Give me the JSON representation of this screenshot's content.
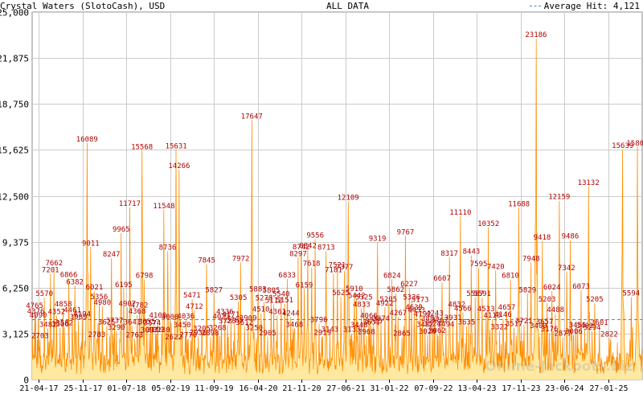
{
  "header": {
    "title": "Crystal Waters (SlotoCash), USD",
    "range": "ALL DATA",
    "average_label": "Average Hit: 4,121"
  },
  "watermark": "Online-Jackpots.biz",
  "colors": {
    "fill": "#ffe8a0",
    "line": "#ff8c00",
    "peak_label": "#b00000",
    "average_line": "#3a8fd8",
    "grid": "#cccccc"
  },
  "chart_data": {
    "type": "area",
    "title": "Crystal Waters (SlotoCash), USD",
    "xlabel": "",
    "ylabel": "",
    "ylim": [
      0,
      25000
    ],
    "yticks": [
      0,
      3125,
      6250,
      9375,
      12500,
      15625,
      18750,
      21875,
      25000
    ],
    "ytick_labels": [
      "0",
      "3,125",
      "6,250",
      "9,375",
      "12,500",
      "15,625",
      "18,750",
      "21,875",
      "25,000"
    ],
    "x_tick_labels": [
      "21-04-17",
      "25-11-17",
      "01-07-18",
      "05-02-19",
      "11-09-19",
      "16-04-20",
      "21-11-20",
      "27-06-21",
      "31-01-22",
      "07-09-22",
      "13-04-23",
      "17-11-23",
      "23-06-24",
      "27-01-25"
    ],
    "average": 4121,
    "grid": true,
    "legend": "top-right",
    "peaks": [
      {
        "x": 0.004,
        "v": 4765
      },
      {
        "x": 0.006,
        "v": 4376
      },
      {
        "x": 0.01,
        "v": 4090
      },
      {
        "x": 0.013,
        "v": 2703
      },
      {
        "x": 0.02,
        "v": 5570
      },
      {
        "x": 0.026,
        "v": 3482
      },
      {
        "x": 0.03,
        "v": 7201
      },
      {
        "x": 0.036,
        "v": 7662
      },
      {
        "x": 0.04,
        "v": 4352
      },
      {
        "x": 0.046,
        "v": 3506
      },
      {
        "x": 0.051,
        "v": 4858
      },
      {
        "x": 0.053,
        "v": 3582
      },
      {
        "x": 0.06,
        "v": 6866
      },
      {
        "x": 0.066,
        "v": 4461
      },
      {
        "x": 0.07,
        "v": 6382
      },
      {
        "x": 0.076,
        "v": 3989
      },
      {
        "x": 0.082,
        "v": 4194
      },
      {
        "x": 0.09,
        "v": 16089
      },
      {
        "x": 0.096,
        "v": 9011
      },
      {
        "x": 0.102,
        "v": 6021
      },
      {
        "x": 0.106,
        "v": 2783
      },
      {
        "x": 0.11,
        "v": 5356
      },
      {
        "x": 0.115,
        "v": 4980
      },
      {
        "x": 0.122,
        "v": 3625
      },
      {
        "x": 0.13,
        "v": 8247
      },
      {
        "x": 0.135,
        "v": 3737
      },
      {
        "x": 0.138,
        "v": 3290
      },
      {
        "x": 0.146,
        "v": 9965
      },
      {
        "x": 0.15,
        "v": 6195
      },
      {
        "x": 0.156,
        "v": 4907
      },
      {
        "x": 0.16,
        "v": 11717
      },
      {
        "x": 0.164,
        "v": 3641
      },
      {
        "x": 0.168,
        "v": 2763
      },
      {
        "x": 0.172,
        "v": 4368
      },
      {
        "x": 0.176,
        "v": 4782
      },
      {
        "x": 0.18,
        "v": 15568
      },
      {
        "x": 0.184,
        "v": 6798
      },
      {
        "x": 0.188,
        "v": 3655
      },
      {
        "x": 0.192,
        "v": 3097
      },
      {
        "x": 0.197,
        "v": 3574
      },
      {
        "x": 0.202,
        "v": 3119
      },
      {
        "x": 0.206,
        "v": 4100
      },
      {
        "x": 0.212,
        "v": 3130
      },
      {
        "x": 0.216,
        "v": 11548
      },
      {
        "x": 0.222,
        "v": 8736
      },
      {
        "x": 0.226,
        "v": 4000
      },
      {
        "x": 0.232,
        "v": 2622
      },
      {
        "x": 0.236,
        "v": 15631
      },
      {
        "x": 0.241,
        "v": 14266
      },
      {
        "x": 0.246,
        "v": 3450
      },
      {
        "x": 0.252,
        "v": 4036
      },
      {
        "x": 0.256,
        "v": 2770
      },
      {
        "x": 0.262,
        "v": 5471
      },
      {
        "x": 0.266,
        "v": 4712
      },
      {
        "x": 0.272,
        "v": 2936
      },
      {
        "x": 0.278,
        "v": 3205
      },
      {
        "x": 0.286,
        "v": 7845
      },
      {
        "x": 0.292,
        "v": 2898
      },
      {
        "x": 0.298,
        "v": 5827
      },
      {
        "x": 0.304,
        "v": 3268
      },
      {
        "x": 0.31,
        "v": 4023
      },
      {
        "x": 0.316,
        "v": 4336
      },
      {
        "x": 0.32,
        "v": 3723
      },
      {
        "x": 0.326,
        "v": 4171
      },
      {
        "x": 0.332,
        "v": 3785
      },
      {
        "x": 0.338,
        "v": 5305
      },
      {
        "x": 0.342,
        "v": 7972
      },
      {
        "x": 0.348,
        "v": 3612
      },
      {
        "x": 0.354,
        "v": 3909
      },
      {
        "x": 0.36,
        "v": 17647
      },
      {
        "x": 0.364,
        "v": 3250
      },
      {
        "x": 0.37,
        "v": 5883
      },
      {
        "x": 0.375,
        "v": 4510
      },
      {
        "x": 0.38,
        "v": 5278
      },
      {
        "x": 0.386,
        "v": 2905
      },
      {
        "x": 0.392,
        "v": 5805
      },
      {
        "x": 0.396,
        "v": 5112
      },
      {
        "x": 0.402,
        "v": 4361
      },
      {
        "x": 0.408,
        "v": 5540
      },
      {
        "x": 0.414,
        "v": 5151
      },
      {
        "x": 0.418,
        "v": 6833
      },
      {
        "x": 0.424,
        "v": 4244
      },
      {
        "x": 0.43,
        "v": 3468
      },
      {
        "x": 0.436,
        "v": 8297
      },
      {
        "x": 0.441,
        "v": 8742
      },
      {
        "x": 0.446,
        "v": 6159
      },
      {
        "x": 0.452,
        "v": 8842
      },
      {
        "x": 0.458,
        "v": 7618
      },
      {
        "x": 0.464,
        "v": 9556
      },
      {
        "x": 0.47,
        "v": 3796
      },
      {
        "x": 0.476,
        "v": 2919
      },
      {
        "x": 0.482,
        "v": 8713
      },
      {
        "x": 0.488,
        "v": 3143
      },
      {
        "x": 0.494,
        "v": 7181
      },
      {
        "x": 0.5,
        "v": 7521
      },
      {
        "x": 0.506,
        "v": 5625
      },
      {
        "x": 0.512,
        "v": 7377
      },
      {
        "x": 0.518,
        "v": 12109
      },
      {
        "x": 0.524,
        "v": 3133
      },
      {
        "x": 0.528,
        "v": 5910
      },
      {
        "x": 0.532,
        "v": 5442
      },
      {
        "x": 0.536,
        "v": 3448
      },
      {
        "x": 0.54,
        "v": 4833
      },
      {
        "x": 0.544,
        "v": 5325
      },
      {
        "x": 0.548,
        "v": 2968
      },
      {
        "x": 0.552,
        "v": 4066
      },
      {
        "x": 0.556,
        "v": 3631
      },
      {
        "x": 0.56,
        "v": 3725
      },
      {
        "x": 0.566,
        "v": 9319
      },
      {
        "x": 0.572,
        "v": 3874
      },
      {
        "x": 0.578,
        "v": 4922
      },
      {
        "x": 0.584,
        "v": 5205
      },
      {
        "x": 0.59,
        "v": 6824
      },
      {
        "x": 0.596,
        "v": 5862
      },
      {
        "x": 0.6,
        "v": 4267
      },
      {
        "x": 0.606,
        "v": 2865
      },
      {
        "x": 0.612,
        "v": 9767
      },
      {
        "x": 0.618,
        "v": 6227
      },
      {
        "x": 0.622,
        "v": 5336
      },
      {
        "x": 0.626,
        "v": 4639
      },
      {
        "x": 0.63,
        "v": 4453
      },
      {
        "x": 0.636,
        "v": 5173
      },
      {
        "x": 0.64,
        "v": 4192
      },
      {
        "x": 0.644,
        "v": 3482
      },
      {
        "x": 0.648,
        "v": 3020
      },
      {
        "x": 0.652,
        "v": 3882
      },
      {
        "x": 0.656,
        "v": 3524
      },
      {
        "x": 0.66,
        "v": 4243
      },
      {
        "x": 0.664,
        "v": 3062
      },
      {
        "x": 0.668,
        "v": 3767
      },
      {
        "x": 0.672,
        "v": 6607
      },
      {
        "x": 0.678,
        "v": 3494
      },
      {
        "x": 0.684,
        "v": 8317
      },
      {
        "x": 0.69,
        "v": 3931
      },
      {
        "x": 0.696,
        "v": 4832
      },
      {
        "x": 0.702,
        "v": 11110
      },
      {
        "x": 0.706,
        "v": 4566
      },
      {
        "x": 0.712,
        "v": 3635
      },
      {
        "x": 0.72,
        "v": 8443
      },
      {
        "x": 0.726,
        "v": 5587
      },
      {
        "x": 0.732,
        "v": 7595
      },
      {
        "x": 0.738,
        "v": 5591
      },
      {
        "x": 0.744,
        "v": 4533
      },
      {
        "x": 0.748,
        "v": 10352
      },
      {
        "x": 0.754,
        "v": 4110
      },
      {
        "x": 0.76,
        "v": 7420
      },
      {
        "x": 0.766,
        "v": 3322
      },
      {
        "x": 0.772,
        "v": 4146
      },
      {
        "x": 0.778,
        "v": 4657
      },
      {
        "x": 0.784,
        "v": 6810
      },
      {
        "x": 0.79,
        "v": 3517
      },
      {
        "x": 0.798,
        "v": 11688
      },
      {
        "x": 0.806,
        "v": 3721
      },
      {
        "x": 0.812,
        "v": 5829
      },
      {
        "x": 0.818,
        "v": 7948
      },
      {
        "x": 0.826,
        "v": 23186
      },
      {
        "x": 0.83,
        "v": 3400
      },
      {
        "x": 0.836,
        "v": 9418
      },
      {
        "x": 0.84,
        "v": 3657
      },
      {
        "x": 0.844,
        "v": 5203
      },
      {
        "x": 0.848,
        "v": 3176
      },
      {
        "x": 0.852,
        "v": 6024
      },
      {
        "x": 0.858,
        "v": 4488
      },
      {
        "x": 0.864,
        "v": 12159
      },
      {
        "x": 0.87,
        "v": 2877
      },
      {
        "x": 0.876,
        "v": 7342
      },
      {
        "x": 0.882,
        "v": 9486
      },
      {
        "x": 0.888,
        "v": 3006
      },
      {
        "x": 0.894,
        "v": 3451
      },
      {
        "x": 0.9,
        "v": 6073
      },
      {
        "x": 0.906,
        "v": 3402
      },
      {
        "x": 0.912,
        "v": 13132
      },
      {
        "x": 0.918,
        "v": 3294
      },
      {
        "x": 0.922,
        "v": 5205
      },
      {
        "x": 0.93,
        "v": 3601
      },
      {
        "x": 0.946,
        "v": 2822
      },
      {
        "x": 0.968,
        "v": 15639
      },
      {
        "x": 0.982,
        "v": 5594
      },
      {
        "x": 0.992,
        "v": 15809
      }
    ]
  }
}
